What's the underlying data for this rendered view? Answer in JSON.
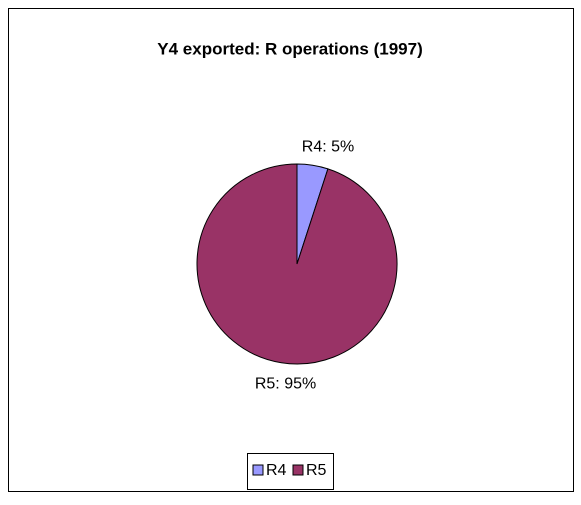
{
  "chart_data": {
    "type": "pie",
    "title": "Y4 exported: R operations (1997)",
    "categories": [
      "R4",
      "R5"
    ],
    "values": [
      5,
      95
    ],
    "value_labels": [
      "R4: 5%",
      "R5: 95%"
    ],
    "colors": [
      "#9999ff",
      "#993366"
    ],
    "legend": "bottom"
  }
}
